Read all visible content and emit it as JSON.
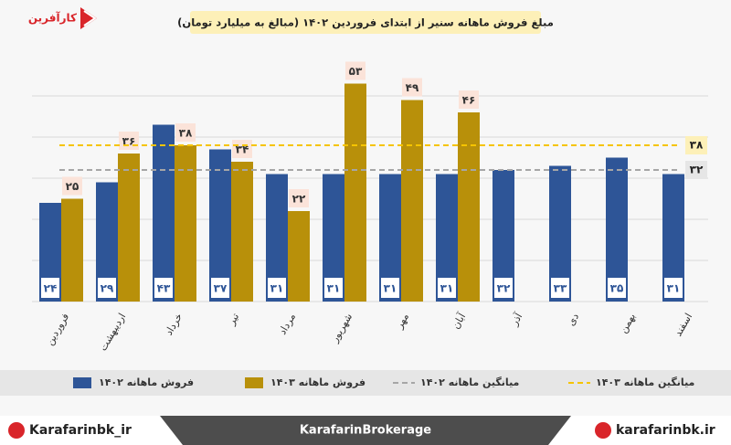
{
  "logo": {
    "name": "کارآفرین"
  },
  "footer": {
    "left": "Karafarinbk_ir",
    "center": "KarafarinBrokerage",
    "right": "karafarinbk.ir"
  },
  "chart_data": {
    "type": "bar",
    "title": "مبلغ فروش ماهانه سنیر از ابتدای فروردین ۱۴۰۲ (مبالغ به میلیارد تومان)",
    "categories": [
      "فروردین",
      "اردیبهشت",
      "خرداد",
      "تیر",
      "مرداد",
      "شهریور",
      "مهر",
      "آبان",
      "آذر",
      "دی",
      "بهمن",
      "اسفند"
    ],
    "series": [
      {
        "name": "فروش ماهانه ۱۴۰۲",
        "color": "#2e5597",
        "values": [
          24,
          29,
          43,
          37,
          31,
          31,
          31,
          31,
          32,
          33,
          35,
          31
        ],
        "value_labels": [
          "۲۴",
          "۲۹",
          "۴۳",
          "۳۷",
          "۳۱",
          "۳۱",
          "۳۱",
          "۳۱",
          "۳۲",
          "۳۳",
          "۳۵",
          "۳۱"
        ]
      },
      {
        "name": "فروش ماهانه ۱۴۰۳",
        "color": "#b8900a",
        "values": [
          25,
          36,
          38,
          34,
          22,
          53,
          49,
          46,
          null,
          null,
          null,
          null
        ],
        "value_labels": [
          "۲۵",
          "۳۶",
          "۳۸",
          "۳۴",
          "۲۲",
          "۵۳",
          "۴۹",
          "۴۶",
          null,
          null,
          null,
          null
        ]
      }
    ],
    "average_lines": [
      {
        "name": "میانگین ماهانه ۱۴۰۲",
        "color": "#a6a6a6",
        "value": 32,
        "value_label": "۳۲"
      },
      {
        "name": "میانگین ماهانه ۱۴۰۳",
        "color": "#f5c400",
        "value": 38,
        "value_label": "۳۸"
      }
    ],
    "ylim": [
      0,
      60
    ],
    "yticks": [
      0,
      10,
      20,
      30,
      40,
      50
    ],
    "grid": true
  }
}
